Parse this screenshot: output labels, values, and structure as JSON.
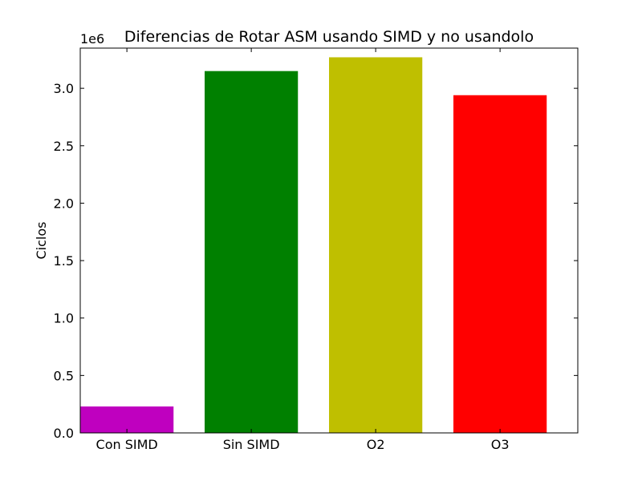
{
  "chart_data": {
    "type": "bar",
    "title": "Diferencias de Rotar ASM usando SIMD y no usandolo",
    "xlabel": "",
    "ylabel": "Ciclos",
    "y_offset_label": "1e6",
    "y_scale_factor": 1000000,
    "categories": [
      "Con SIMD",
      "Sin SIMD",
      "O2",
      "O3"
    ],
    "values": [
      230000,
      3150000,
      3270000,
      2940000
    ],
    "bar_colors": [
      "#bf00bf",
      "#008000",
      "#bfbf00",
      "#ff0000"
    ],
    "ylim": [
      0,
      3350000
    ],
    "y_ticks": [
      0,
      500000,
      1000000,
      1500000,
      2000000,
      2500000,
      3000000
    ],
    "y_tick_labels": [
      "0.0",
      "0.5",
      "1.0",
      "1.5",
      "2.0",
      "2.5",
      "3.0"
    ],
    "grid": false,
    "legend": "none"
  }
}
